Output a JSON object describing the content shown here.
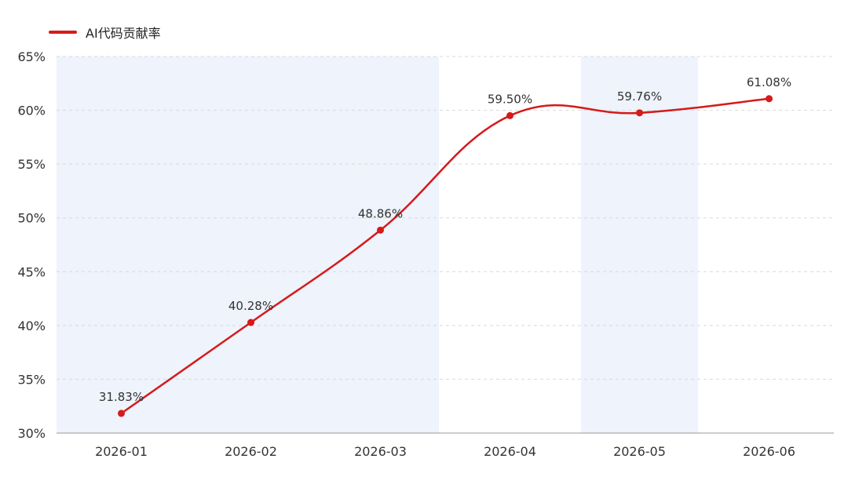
{
  "legend": {
    "label": "AI代码贡献率",
    "color": "#d61a1a"
  },
  "colors": {
    "line": "#d61a1a",
    "band": "#eef3fc",
    "grid": "#d9d9d9",
    "axis": "#999999"
  },
  "chart_data": {
    "type": "line",
    "categories": [
      "2026-01",
      "2026-02",
      "2026-03",
      "2026-04",
      "2026-05",
      "2026-06"
    ],
    "series": [
      {
        "name": "AI代码贡献率",
        "values": [
          31.83,
          40.28,
          48.86,
          59.5,
          59.76,
          61.08
        ],
        "labels": [
          "31.83%",
          "40.28%",
          "48.86%",
          "59.50%",
          "59.76%",
          "61.08%"
        ]
      }
    ],
    "y_ticks": [
      "30%",
      "35%",
      "40%",
      "45%",
      "50%",
      "55%",
      "60%",
      "65%"
    ],
    "ylim": [
      30,
      65
    ],
    "grid": true,
    "grid_style": "dashed",
    "legend_position": "top-left",
    "shaded_ranges": [
      {
        "from": "2026-01",
        "to": "2026-03"
      },
      {
        "from": "2026-05",
        "to": "2026-05"
      }
    ]
  }
}
